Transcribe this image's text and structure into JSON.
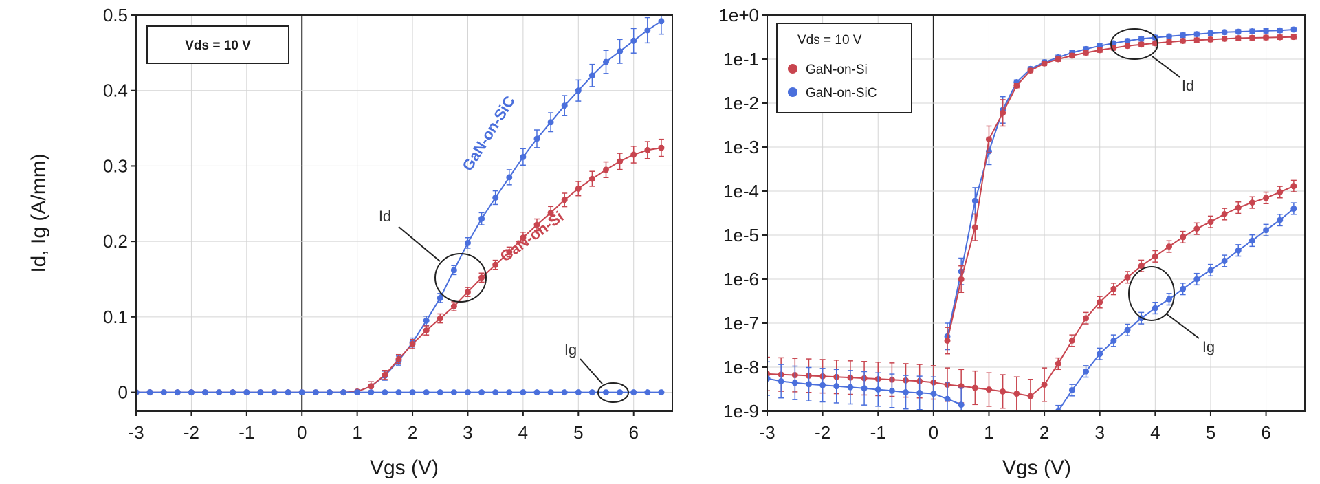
{
  "colors": {
    "sic": "#4a6fdc",
    "si": "#c8454f",
    "grid": "#d4d4d4",
    "frame": "#222222"
  },
  "chart_data": [
    {
      "type": "line",
      "title": "",
      "xlabel": "Vgs (V)",
      "ylabel": "Id, Ig (A/mm)",
      "xlim": [
        -3,
        6.7
      ],
      "ylim": [
        -0.025,
        0.5
      ],
      "x_ticks": [
        "-3",
        "-2",
        "-1",
        "0",
        "1",
        "2",
        "3",
        "4",
        "5",
        "6"
      ],
      "y_ticks": [
        "0",
        "0.1",
        "0.2",
        "0.3",
        "0.4",
        "0.5"
      ],
      "grid": true,
      "condition_box": "Vds = 10 V",
      "series_labels": {
        "sic": "GaN-on-SiC",
        "si": "GaN-on-Si"
      },
      "annotations": {
        "id": "Id",
        "ig": "Ig"
      },
      "x": [
        -3,
        -2.75,
        -2.5,
        -2.25,
        -2,
        -1.75,
        -1.5,
        -1.25,
        -1,
        -0.75,
        -0.5,
        -0.25,
        0,
        0.25,
        0.5,
        0.75,
        1,
        1.25,
        1.5,
        1.75,
        2,
        2.25,
        2.5,
        2.75,
        3,
        3.25,
        3.5,
        3.75,
        4,
        4.25,
        4.5,
        4.75,
        5,
        5.25,
        5.5,
        5.75,
        6,
        6.25,
        6.5
      ],
      "series": [
        {
          "name": "GaN-on-SiC",
          "key": "sic",
          "kind": "Id",
          "values": [
            0,
            0,
            0,
            0,
            0,
            0,
            0,
            0,
            0,
            0,
            0,
            0,
            0,
            0,
            0,
            0,
            0.001,
            0.008,
            0.022,
            0.042,
            0.066,
            0.095,
            0.125,
            0.162,
            0.198,
            0.23,
            0.258,
            0.285,
            0.312,
            0.336,
            0.358,
            0.38,
            0.4,
            0.42,
            0.438,
            0.452,
            0.466,
            0.48,
            0.492
          ]
        },
        {
          "name": "GaN-on-Si",
          "key": "si",
          "kind": "Id",
          "values": [
            0,
            0,
            0,
            0,
            0,
            0,
            0,
            0,
            0,
            0,
            0,
            0,
            0,
            0,
            0,
            0,
            0.001,
            0.008,
            0.023,
            0.044,
            0.064,
            0.082,
            0.098,
            0.114,
            0.133,
            0.152,
            0.169,
            0.186,
            0.205,
            0.222,
            0.238,
            0.255,
            0.27,
            0.283,
            0.295,
            0.306,
            0.315,
            0.321,
            0.324
          ]
        },
        {
          "name": "GaN-on-SiC",
          "key": "sic",
          "kind": "Ig",
          "values": [
            0,
            0,
            0,
            0,
            0,
            0,
            0,
            0,
            0,
            0,
            0,
            0,
            0,
            0,
            0,
            0,
            0,
            0,
            0,
            0,
            0,
            0,
            0,
            0,
            0,
            0,
            0,
            0,
            0,
            0,
            0,
            0,
            0,
            0,
            0,
            0,
            0,
            0,
            0
          ]
        }
      ]
    },
    {
      "type": "line",
      "title": "",
      "xlabel": "Vgs (V)",
      "ylabel": "",
      "yscale": "log",
      "xlim": [
        -3,
        6.7
      ],
      "ylim": [
        1e-09,
        1
      ],
      "x_ticks": [
        "-3",
        "-2",
        "-1",
        "0",
        "1",
        "2",
        "3",
        "4",
        "5",
        "6"
      ],
      "y_ticks": [
        "1e+0",
        "1e-1",
        "1e-2",
        "1e-3",
        "1e-4",
        "1e-5",
        "1e-6",
        "1e-7",
        "1e-8",
        "1e-9"
      ],
      "grid": true,
      "legend": {
        "position": "top-left",
        "title": "Vds = 10 V",
        "entries": [
          {
            "name": "GaN-on-Si",
            "key": "si"
          },
          {
            "name": "GaN-on-SiC",
            "key": "sic"
          }
        ]
      },
      "annotations": {
        "id": "Id",
        "ig": "Ig"
      },
      "x": [
        -3,
        -2.75,
        -2.5,
        -2.25,
        -2,
        -1.75,
        -1.5,
        -1.25,
        -1,
        -0.75,
        -0.5,
        -0.25,
        0,
        0.25,
        0.5,
        0.75,
        1,
        1.25,
        1.5,
        1.75,
        2,
        2.25,
        2.5,
        2.75,
        3,
        3.25,
        3.5,
        3.75,
        4,
        4.25,
        4.5,
        4.75,
        5,
        5.25,
        5.5,
        5.75,
        6,
        6.25,
        6.5
      ],
      "series": [
        {
          "name": "GaN-on-SiC",
          "key": "sic",
          "kind": "Id",
          "values": [
            null,
            null,
            null,
            null,
            null,
            null,
            null,
            null,
            null,
            null,
            null,
            null,
            null,
            5e-08,
            1.5e-06,
            6e-05,
            0.0008,
            0.007,
            0.03,
            0.06,
            0.085,
            0.11,
            0.14,
            0.17,
            0.2,
            0.23,
            0.26,
            0.29,
            0.31,
            0.33,
            0.35,
            0.37,
            0.39,
            0.41,
            0.42,
            0.43,
            0.44,
            0.45,
            0.47
          ]
        },
        {
          "name": "GaN-on-Si",
          "key": "si",
          "kind": "Id",
          "values": [
            null,
            null,
            null,
            null,
            null,
            null,
            null,
            null,
            null,
            null,
            null,
            null,
            null,
            4e-08,
            1e-06,
            1.5e-05,
            0.0015,
            0.006,
            0.025,
            0.055,
            0.08,
            0.1,
            0.12,
            0.14,
            0.16,
            0.18,
            0.2,
            0.215,
            0.23,
            0.245,
            0.26,
            0.27,
            0.28,
            0.29,
            0.3,
            0.305,
            0.31,
            0.315,
            0.32
          ]
        },
        {
          "name": "GaN-on-Si",
          "key": "si",
          "kind": "Ig",
          "values": [
            7e-09,
            6.8e-09,
            6.6e-09,
            6.4e-09,
            6.2e-09,
            6e-09,
            5.8e-09,
            5.6e-09,
            5.4e-09,
            5.2e-09,
            5e-09,
            4.8e-09,
            4.5e-09,
            4e-09,
            3.7e-09,
            3.4e-09,
            3.1e-09,
            2.8e-09,
            2.5e-09,
            2.2e-09,
            4e-09,
            1.2e-08,
            4e-08,
            1.3e-07,
            3e-07,
            6e-07,
            1.1e-06,
            2e-06,
            3.3e-06,
            5.5e-06,
            9e-06,
            1.4e-05,
            2e-05,
            3e-05,
            4.2e-05,
            5.5e-05,
            7e-05,
            9.5e-05,
            0.00013
          ]
        },
        {
          "name": "GaN-on-SiC",
          "key": "sic",
          "kind": "Ig",
          "values": [
            5.5e-09,
            4.8e-09,
            4.4e-09,
            4.1e-09,
            3.9e-09,
            3.7e-09,
            3.5e-09,
            3.3e-09,
            3.1e-09,
            2.9e-09,
            2.7e-09,
            2.6e-09,
            2.5e-09,
            1.9e-09,
            1.4e-09,
            null,
            null,
            null,
            null,
            null,
            null,
            1e-09,
            3e-09,
            8e-09,
            2e-08,
            4e-08,
            7e-08,
            1.3e-07,
            2.2e-07,
            3.5e-07,
            6e-07,
            1e-06,
            1.6e-06,
            2.6e-06,
            4.5e-06,
            7.5e-06,
            1.3e-05,
            2.2e-05,
            4e-05
          ]
        }
      ]
    }
  ]
}
